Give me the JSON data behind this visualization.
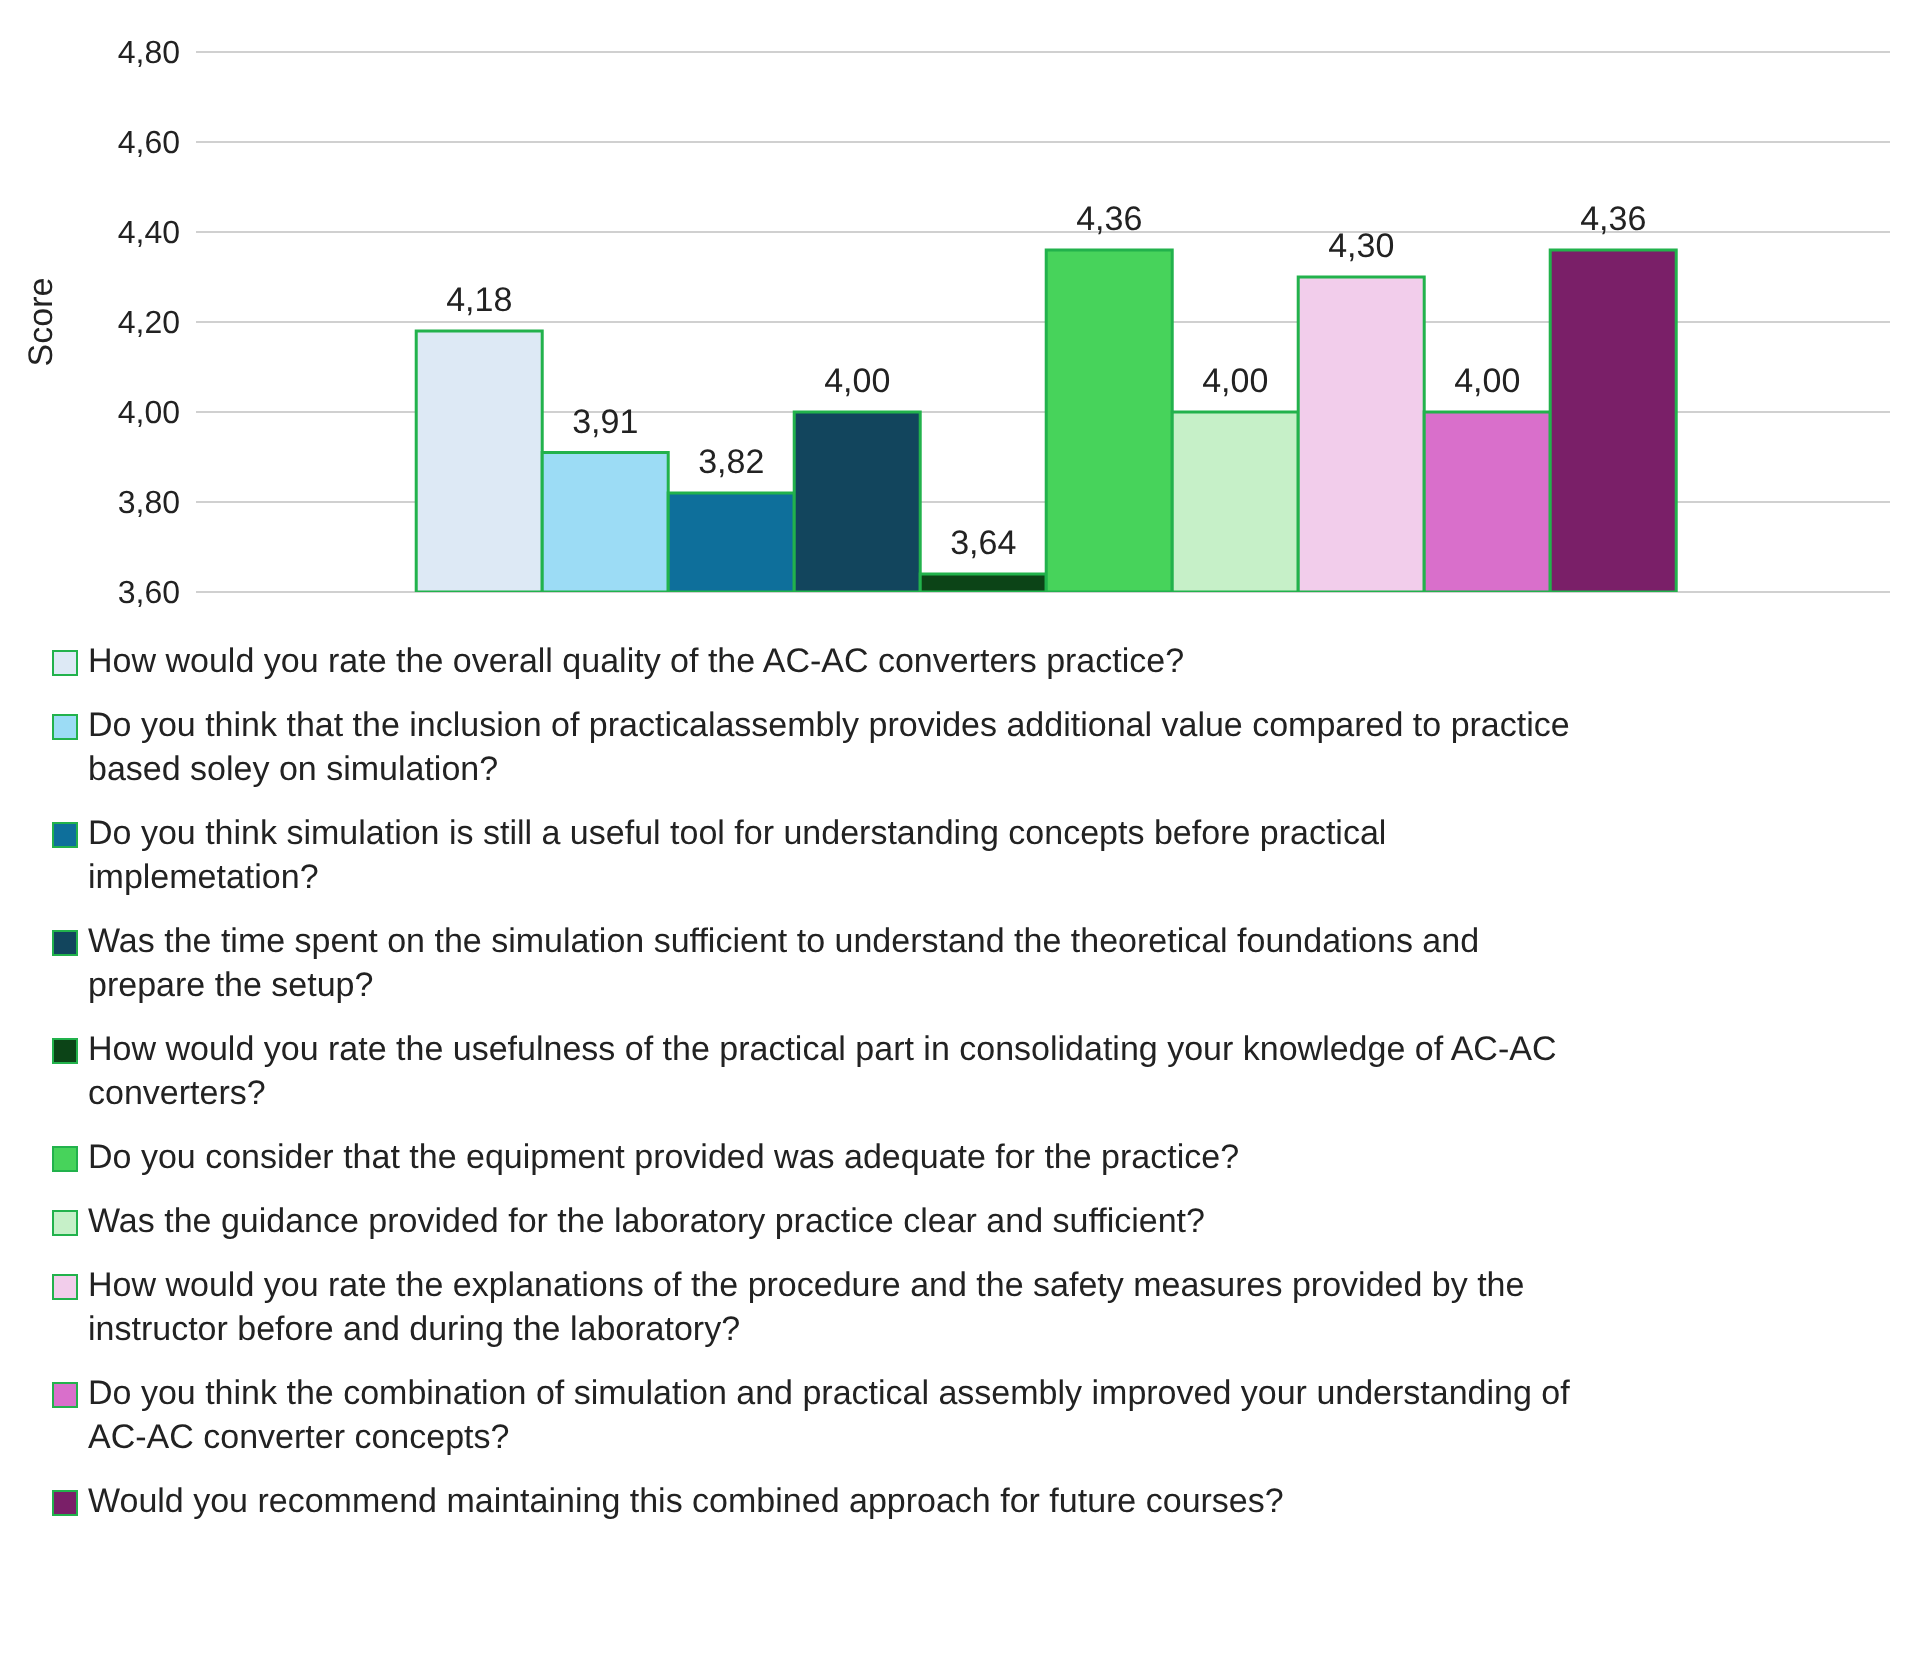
{
  "chart_data": {
    "type": "bar",
    "ylabel": "Score",
    "categories": [
      null
    ],
    "series": [
      {
        "name": "How would you rate the overall quality of the AC-AC converters practice?",
        "color": "#dde9f5",
        "values": [
          4.18
        ],
        "value_labels": [
          "4,18"
        ]
      },
      {
        "name": "Do you think that the inclusion of practicalassembly provides  additional value compared to practice based soley on simulation?",
        "color": "#9cdcf5",
        "values": [
          3.91
        ],
        "value_labels": [
          "3,91"
        ]
      },
      {
        "name": "Do you think simulation is still a useful tool for understanding concepts before practical implemetation?",
        "color": "#0e6f9b",
        "values": [
          3.82
        ],
        "value_labels": [
          "3,82"
        ]
      },
      {
        "name": "Was the time spent on the simulation sufficient to understand the theoretical foundations and prepare the setup?",
        "color": "#12455d",
        "values": [
          4.0
        ],
        "value_labels": [
          "4,00"
        ]
      },
      {
        "name": "How would you rate the usefulness of the practical part in consolidating your knowledge of AC-AC converters?",
        "color": "#0c4417",
        "values": [
          3.64
        ],
        "value_labels": [
          "3,64"
        ]
      },
      {
        "name": "Do you consider that the equipment provided was adequate for the practice?",
        "color": "#47d35b",
        "values": [
          4.36
        ],
        "value_labels": [
          "4,36"
        ]
      },
      {
        "name": "Was the guidance provided for the laboratory practice clear and sufficient?",
        "color": "#c6f0c8",
        "values": [
          4.0
        ],
        "value_labels": [
          "4,00"
        ]
      },
      {
        "name": "How would you rate the explanations of the procedure and the safety measures provided by the instructor before and during the laboratory?",
        "color": "#f2cdeb",
        "values": [
          4.3
        ],
        "value_labels": [
          "4,30"
        ]
      },
      {
        "name": "Do you think the combination of simulation and practical assembly improved your understanding of AC-AC converter concepts?",
        "color": "#d96fcb",
        "values": [
          4.0
        ],
        "value_labels": [
          "4,00"
        ]
      },
      {
        "name": "Would you recommend maintaining this combined approach for future courses?",
        "color": "#7a1f68",
        "values": [
          4.36
        ],
        "value_labels": [
          "4,36"
        ]
      }
    ],
    "ylim": [
      3.6,
      4.8
    ],
    "yticks": [
      {
        "value": 3.6,
        "label": "3,60"
      },
      {
        "value": 3.8,
        "label": "3,80"
      },
      {
        "value": 4.0,
        "label": "4,00"
      },
      {
        "value": 4.2,
        "label": "4,20"
      },
      {
        "value": 4.4,
        "label": "4,40"
      },
      {
        "value": 4.6,
        "label": "4,60"
      },
      {
        "value": 4.8,
        "label": "4,80"
      }
    ],
    "grid": "y",
    "legend": "bottom"
  }
}
